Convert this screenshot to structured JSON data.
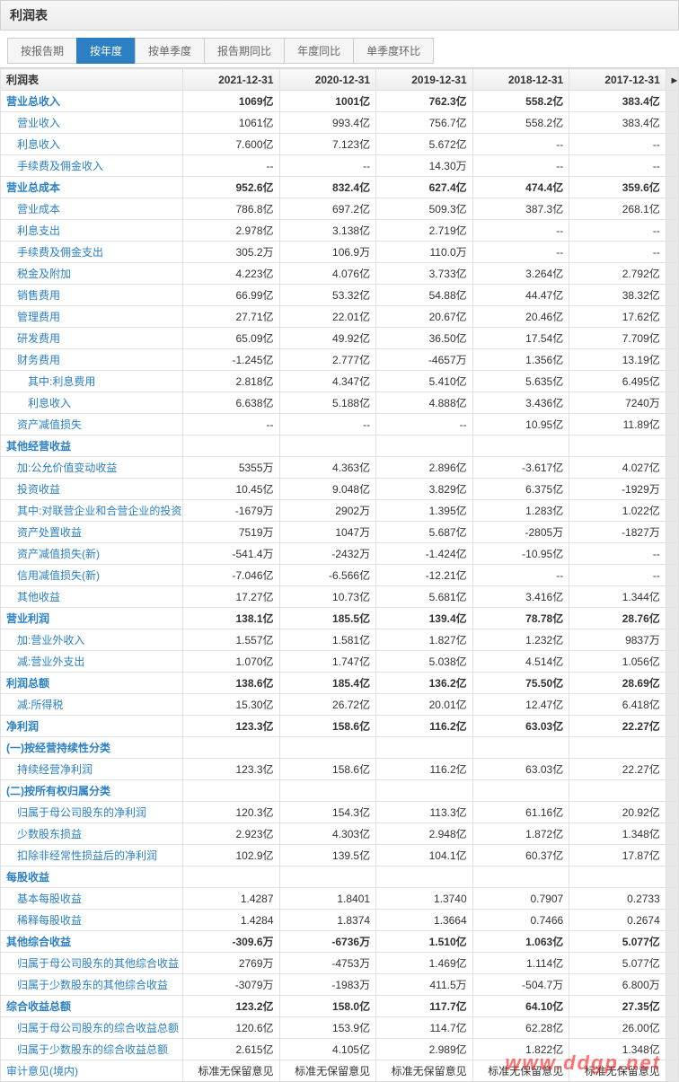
{
  "title": "利润表",
  "tabs": [
    "按报告期",
    "按年度",
    "按单季度",
    "报告期同比",
    "年度同比",
    "单季度环比"
  ],
  "active_tab": 1,
  "columns": [
    "利润表",
    "2021-12-31",
    "2020-12-31",
    "2019-12-31",
    "2018-12-31",
    "2017-12-31"
  ],
  "rows": [
    {
      "l": "营业总收入",
      "b": 1,
      "v": [
        "1069亿",
        "1001亿",
        "762.3亿",
        "558.2亿",
        "383.4亿"
      ]
    },
    {
      "l": "营业收入",
      "i": 1,
      "v": [
        "1061亿",
        "993.4亿",
        "756.7亿",
        "558.2亿",
        "383.4亿"
      ]
    },
    {
      "l": "利息收入",
      "i": 1,
      "v": [
        "7.600亿",
        "7.123亿",
        "5.672亿",
        "--",
        "--"
      ]
    },
    {
      "l": "手续费及佣金收入",
      "i": 1,
      "v": [
        "--",
        "--",
        "14.30万",
        "--",
        "--"
      ]
    },
    {
      "l": "营业总成本",
      "b": 1,
      "v": [
        "952.6亿",
        "832.4亿",
        "627.4亿",
        "474.4亿",
        "359.6亿"
      ]
    },
    {
      "l": "营业成本",
      "i": 1,
      "v": [
        "786.8亿",
        "697.2亿",
        "509.3亿",
        "387.3亿",
        "268.1亿"
      ]
    },
    {
      "l": "利息支出",
      "i": 1,
      "v": [
        "2.978亿",
        "3.138亿",
        "2.719亿",
        "--",
        "--"
      ]
    },
    {
      "l": "手续费及佣金支出",
      "i": 1,
      "v": [
        "305.2万",
        "106.9万",
        "110.0万",
        "--",
        "--"
      ]
    },
    {
      "l": "税金及附加",
      "i": 1,
      "v": [
        "4.223亿",
        "4.076亿",
        "3.733亿",
        "3.264亿",
        "2.792亿"
      ]
    },
    {
      "l": "销售费用",
      "i": 1,
      "v": [
        "66.99亿",
        "53.32亿",
        "54.88亿",
        "44.47亿",
        "38.32亿"
      ]
    },
    {
      "l": "管理费用",
      "i": 1,
      "v": [
        "27.71亿",
        "22.01亿",
        "20.67亿",
        "20.46亿",
        "17.62亿"
      ]
    },
    {
      "l": "研发费用",
      "i": 1,
      "v": [
        "65.09亿",
        "49.92亿",
        "36.50亿",
        "17.54亿",
        "7.709亿"
      ]
    },
    {
      "l": "财务费用",
      "i": 1,
      "v": [
        "-1.245亿",
        "2.777亿",
        "-4657万",
        "1.356亿",
        "13.19亿"
      ]
    },
    {
      "l": "其中:利息费用",
      "i": 2,
      "v": [
        "2.818亿",
        "4.347亿",
        "5.410亿",
        "5.635亿",
        "6.495亿"
      ]
    },
    {
      "l": "利息收入",
      "i": 2,
      "v": [
        "6.638亿",
        "5.188亿",
        "4.888亿",
        "3.436亿",
        "7240万"
      ]
    },
    {
      "l": "资产减值损失",
      "i": 1,
      "v": [
        "--",
        "--",
        "--",
        "10.95亿",
        "11.89亿"
      ]
    },
    {
      "l": "其他经营收益",
      "b": 1,
      "v": [
        "",
        "",
        "",
        "",
        ""
      ]
    },
    {
      "l": "加:公允价值变动收益",
      "i": 1,
      "v": [
        "5355万",
        "4.363亿",
        "2.896亿",
        "-3.617亿",
        "4.027亿"
      ]
    },
    {
      "l": "投资收益",
      "i": 1,
      "v": [
        "10.45亿",
        "9.048亿",
        "3.829亿",
        "6.375亿",
        "-1929万"
      ]
    },
    {
      "l": "其中:对联营企业和合营企业的投资收益",
      "i": 1,
      "v": [
        "-1679万",
        "2902万",
        "1.395亿",
        "1.283亿",
        "1.022亿"
      ]
    },
    {
      "l": "资产处置收益",
      "i": 1,
      "v": [
        "7519万",
        "1047万",
        "5.687亿",
        "-2805万",
        "-1827万"
      ]
    },
    {
      "l": "资产减值损失(新)",
      "i": 1,
      "v": [
        "-541.4万",
        "-2432万",
        "-1.424亿",
        "-10.95亿",
        "--"
      ]
    },
    {
      "l": "信用减值损失(新)",
      "i": 1,
      "v": [
        "-7.046亿",
        "-6.566亿",
        "-12.21亿",
        "--",
        "--"
      ]
    },
    {
      "l": "其他收益",
      "i": 1,
      "v": [
        "17.27亿",
        "10.73亿",
        "5.681亿",
        "3.416亿",
        "1.344亿"
      ]
    },
    {
      "l": "营业利润",
      "b": 1,
      "v": [
        "138.1亿",
        "185.5亿",
        "139.4亿",
        "78.78亿",
        "28.76亿"
      ]
    },
    {
      "l": "加:营业外收入",
      "i": 1,
      "v": [
        "1.557亿",
        "1.581亿",
        "1.827亿",
        "1.232亿",
        "9837万"
      ]
    },
    {
      "l": "减:营业外支出",
      "i": 1,
      "v": [
        "1.070亿",
        "1.747亿",
        "5.038亿",
        "4.514亿",
        "1.056亿"
      ]
    },
    {
      "l": "利润总额",
      "b": 1,
      "v": [
        "138.6亿",
        "185.4亿",
        "136.2亿",
        "75.50亿",
        "28.69亿"
      ]
    },
    {
      "l": "减:所得税",
      "i": 1,
      "v": [
        "15.30亿",
        "26.72亿",
        "20.01亿",
        "12.47亿",
        "6.418亿"
      ]
    },
    {
      "l": "净利润",
      "b": 1,
      "v": [
        "123.3亿",
        "158.6亿",
        "116.2亿",
        "63.03亿",
        "22.27亿"
      ]
    },
    {
      "l": "(一)按经营持续性分类",
      "b": 1,
      "v": [
        "",
        "",
        "",
        "",
        ""
      ]
    },
    {
      "l": "持续经营净利润",
      "i": 1,
      "v": [
        "123.3亿",
        "158.6亿",
        "116.2亿",
        "63.03亿",
        "22.27亿"
      ]
    },
    {
      "l": "(二)按所有权归属分类",
      "b": 1,
      "v": [
        "",
        "",
        "",
        "",
        ""
      ]
    },
    {
      "l": "归属于母公司股东的净利润",
      "i": 1,
      "v": [
        "120.3亿",
        "154.3亿",
        "113.3亿",
        "61.16亿",
        "20.92亿"
      ]
    },
    {
      "l": "少数股东损益",
      "i": 1,
      "v": [
        "2.923亿",
        "4.303亿",
        "2.948亿",
        "1.872亿",
        "1.348亿"
      ]
    },
    {
      "l": "扣除非经常性损益后的净利润",
      "i": 1,
      "v": [
        "102.9亿",
        "139.5亿",
        "104.1亿",
        "60.37亿",
        "17.87亿"
      ]
    },
    {
      "l": "每股收益",
      "b": 1,
      "v": [
        "",
        "",
        "",
        "",
        ""
      ]
    },
    {
      "l": "基本每股收益",
      "i": 1,
      "v": [
        "1.4287",
        "1.8401",
        "1.3740",
        "0.7907",
        "0.2733"
      ]
    },
    {
      "l": "稀释每股收益",
      "i": 1,
      "v": [
        "1.4284",
        "1.8374",
        "1.3664",
        "0.7466",
        "0.2674"
      ]
    },
    {
      "l": "其他综合收益",
      "b": 1,
      "v": [
        "-309.6万",
        "-6736万",
        "1.510亿",
        "1.063亿",
        "5.077亿"
      ]
    },
    {
      "l": "归属于母公司股东的其他综合收益",
      "i": 1,
      "v": [
        "2769万",
        "-4753万",
        "1.469亿",
        "1.114亿",
        "5.077亿"
      ]
    },
    {
      "l": "归属于少数股东的其他综合收益",
      "i": 1,
      "v": [
        "-3079万",
        "-1983万",
        "411.5万",
        "-504.7万",
        "6.800万"
      ]
    },
    {
      "l": "综合收益总额",
      "b": 1,
      "v": [
        "123.2亿",
        "158.0亿",
        "117.7亿",
        "64.10亿",
        "27.35亿"
      ]
    },
    {
      "l": "归属于母公司股东的综合收益总额",
      "i": 1,
      "v": [
        "120.6亿",
        "153.9亿",
        "114.7亿",
        "62.28亿",
        "26.00亿"
      ]
    },
    {
      "l": "归属于少数股东的综合收益总额",
      "i": 1,
      "v": [
        "2.615亿",
        "4.105亿",
        "2.989亿",
        "1.822亿",
        "1.348亿"
      ]
    },
    {
      "l": "审计意见(境内)",
      "v": [
        "标准无保留意见",
        "标准无保留意见",
        "标准无保留意见",
        "标准无保留意见",
        "标准无保留意见"
      ]
    }
  ],
  "watermark": "www.ddgp.net"
}
